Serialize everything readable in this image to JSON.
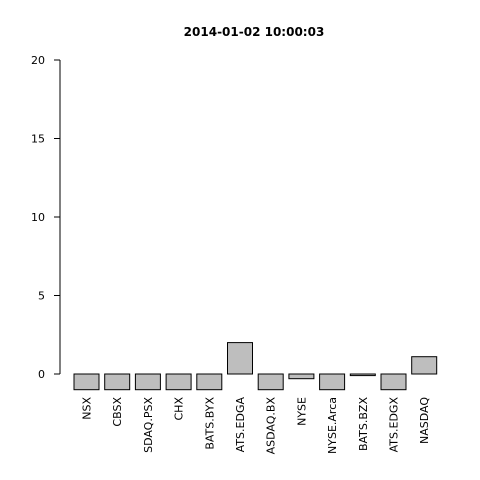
{
  "chart_data": {
    "type": "bar",
    "title": "2014-01-02 10:00:03",
    "xlabel": "",
    "ylabel": "",
    "ylim": [
      -1,
      20
    ],
    "yticks": [
      0,
      5,
      10,
      15,
      20
    ],
    "categories": [
      "NSX",
      "CBSX",
      "SDAQ.PSX",
      "CHX",
      "BATS.BYX",
      "ATS.EDGA",
      "ASDAQ.BX",
      "NYSE",
      "NYSE.Arca",
      "BATS.BZX",
      "ATS.EDGX",
      "NASDAQ"
    ],
    "values": [
      -1,
      -1,
      -1,
      -1,
      -1,
      2,
      -1,
      -0.3,
      -1,
      -0.1,
      -1,
      1.1
    ],
    "bar_color": "#bebebe",
    "grid": false,
    "legend": "none"
  }
}
